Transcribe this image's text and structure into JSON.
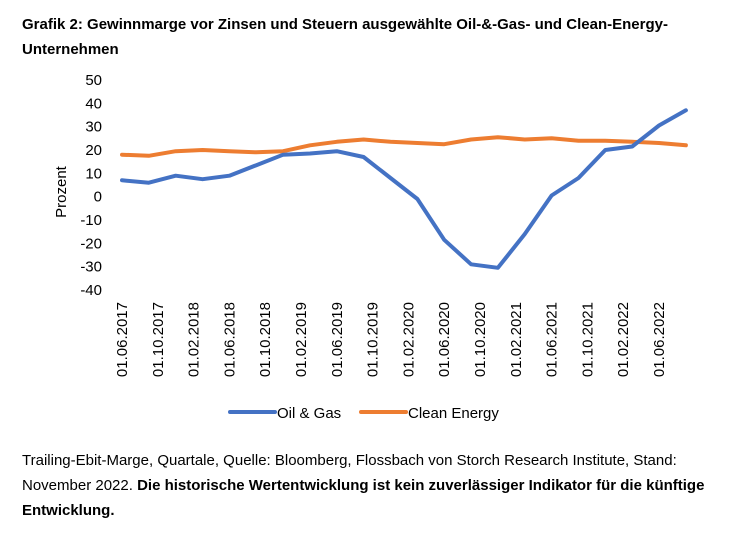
{
  "title": "Grafik 2: Gewinnmarge vor Zinsen und Steuern ausgewählte Oil-&-Gas- und Clean-Energy-Unternehmen",
  "footer": {
    "text": "Trailing-Ebit-Marge, Quartale, Quelle: Bloomberg, Flossbach von Storch Research Institute, Stand: November 2022. ",
    "disclaimer": "Die historische Wertentwicklung ist kein zuverlässiger Indikator für die künftige Entwicklung."
  },
  "colors": {
    "oil_gas": "#4472C4",
    "clean_energy": "#ED7D31"
  },
  "chart_data": {
    "type": "line",
    "ylabel": "Prozent",
    "xlabel": "",
    "ylim": [
      -40,
      50
    ],
    "yticks": [
      50,
      40,
      30,
      20,
      10,
      0,
      -10,
      -20,
      -30,
      -40
    ],
    "grid": false,
    "legend": "bottom",
    "x": [
      "01.06.2017",
      "01.09.2017",
      "01.12.2017",
      "01.03.2018",
      "01.06.2018",
      "01.09.2018",
      "01.12.2018",
      "01.03.2019",
      "01.06.2019",
      "01.09.2019",
      "01.12.2019",
      "01.03.2020",
      "01.06.2020",
      "01.09.2020",
      "01.12.2020",
      "01.03.2021",
      "01.06.2021",
      "01.09.2021",
      "01.12.2021",
      "01.03.2022",
      "01.06.2022",
      "01.09.2022"
    ],
    "xtick_labels": [
      "01.06.2017",
      "01.10.2017",
      "01.02.2018",
      "01.06.2018",
      "01.10.2018",
      "01.02.2019",
      "01.06.2019",
      "01.10.2019",
      "01.02.2020",
      "01.06.2020",
      "01.10.2020",
      "01.02.2021",
      "01.06.2021",
      "01.10.2021",
      "01.02.2022",
      "01.06.2022"
    ],
    "series": [
      {
        "name": "Oil & Gas",
        "values": [
          7,
          6,
          9,
          7.5,
          9,
          13.5,
          18,
          18.5,
          19.5,
          17,
          8,
          -1,
          -18.5,
          -29,
          -30.5,
          -16,
          0.5,
          8,
          20,
          21.5,
          30.5,
          37
        ]
      },
      {
        "name": "Clean Energy",
        "values": [
          18,
          17.5,
          19.5,
          20,
          19.5,
          19,
          19.5,
          22,
          23.5,
          24.5,
          23.5,
          23,
          22.5,
          24.5,
          25.5,
          24.5,
          25,
          24,
          24,
          23.5,
          23,
          22
        ]
      }
    ]
  }
}
